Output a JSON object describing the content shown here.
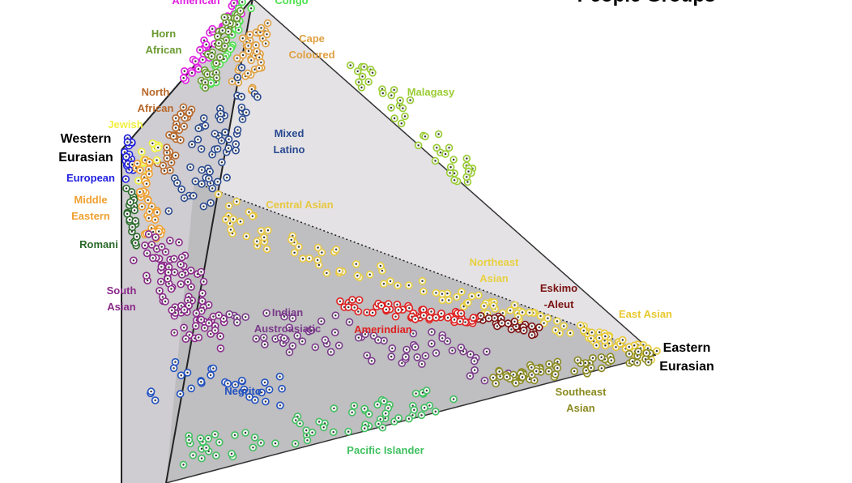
{
  "title": "People Groups",
  "vertices": [
    {
      "lines": [
        "Western",
        "Eurasian"
      ]
    },
    {
      "lines": [
        "Eastern",
        "Eurasian"
      ]
    }
  ],
  "groups": [
    {
      "lines": [
        "American"
      ],
      "color": "#e020e0"
    },
    {
      "lines": [
        "Congo"
      ],
      "color": "#50e050"
    },
    {
      "lines": [
        "Horn",
        "African"
      ],
      "color": "#6a9a30"
    },
    {
      "lines": [
        "Cape",
        "Coloured"
      ],
      "color": "#e0a040"
    },
    {
      "lines": [
        "Malagasy"
      ],
      "color": "#9acd32"
    },
    {
      "lines": [
        "North",
        "African"
      ],
      "color": "#b8682a"
    },
    {
      "lines": [
        "Jewish"
      ],
      "color": "#f0f040"
    },
    {
      "lines": [
        "Mixed",
        "Latino"
      ],
      "color": "#2a4a90"
    },
    {
      "lines": [
        "European"
      ],
      "color": "#2020e0"
    },
    {
      "lines": [
        "Middle",
        "Eastern"
      ],
      "color": "#f0a030"
    },
    {
      "lines": [
        "Central Asian"
      ],
      "color": "#e8c840"
    },
    {
      "lines": [
        "Romani"
      ],
      "color": "#2a6a2a"
    },
    {
      "lines": [
        "South",
        "Asian"
      ],
      "color": "#8a2a8a"
    },
    {
      "lines": [
        "Northeast",
        "Asian"
      ],
      "color": "#e8d040"
    },
    {
      "lines": [
        "Eskimo",
        "-Aleut"
      ],
      "color": "#7a1010"
    },
    {
      "lines": [
        "East Asian"
      ],
      "color": "#e8c830"
    },
    {
      "lines": [
        "Indian",
        "Austroasiatic"
      ],
      "color": "#7a3a8a"
    },
    {
      "lines": [
        "Amerindian"
      ],
      "color": "#e02020"
    },
    {
      "lines": [
        "Negrito"
      ],
      "color": "#2050c0"
    },
    {
      "lines": [
        "Southeast",
        "Asian"
      ],
      "color": "#8a8a20"
    },
    {
      "lines": [
        "Pacific Islander"
      ],
      "color": "#40c060"
    }
  ]
}
